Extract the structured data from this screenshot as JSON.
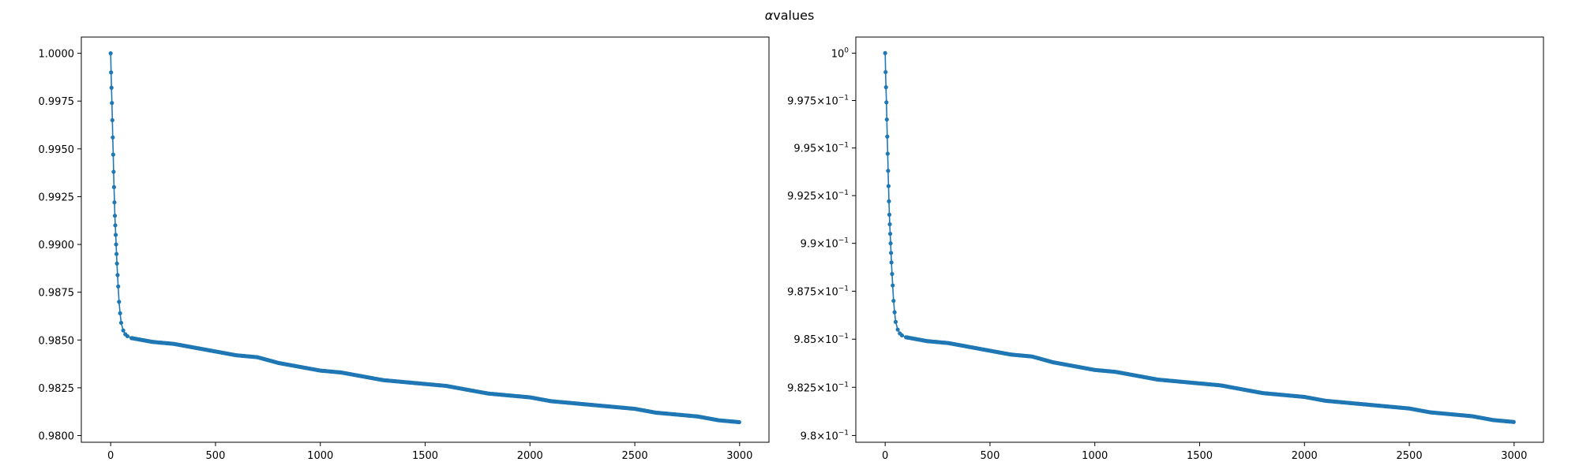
{
  "figure": {
    "suptitle_alpha": "α",
    "suptitle_rest": "values"
  },
  "colors": {
    "series": "#1f77b4",
    "axes": "#000000",
    "background": "#ffffff"
  },
  "chart_data": [
    {
      "type": "line",
      "marker": "dot",
      "yscale": "linear",
      "xlim": [
        -140,
        3140
      ],
      "ylim": [
        0.97965,
        1.00085
      ],
      "xticks": [
        0,
        500,
        1000,
        1500,
        2000,
        2500,
        3000
      ],
      "xtick_labels": [
        "0",
        "500",
        "1000",
        "1500",
        "2000",
        "2500",
        "3000"
      ],
      "yticks": [
        0.98,
        0.9825,
        0.985,
        0.9875,
        0.99,
        0.9925,
        0.995,
        0.9975,
        1.0
      ],
      "ytick_labels": [
        "0.9800",
        "0.9825",
        "0.9850",
        "0.9875",
        "0.9900",
        "0.9925",
        "0.9950",
        "0.9975",
        "1.0000"
      ],
      "series": [
        {
          "x": [
            0,
            2,
            4,
            6,
            8,
            10,
            12,
            14,
            16,
            18,
            20,
            22,
            24,
            26,
            28,
            30,
            33,
            36,
            40,
            45,
            50,
            60,
            70,
            80,
            100,
            150,
            200,
            300,
            400,
            500,
            600,
            700,
            800,
            900,
            1000,
            1100,
            1200,
            1300,
            1400,
            1500,
            1600,
            1700,
            1800,
            1900,
            2000,
            2100,
            2200,
            2300,
            2400,
            2500,
            2600,
            2700,
            2800,
            2900,
            3000
          ],
          "y": [
            1.0,
            0.999,
            0.9982,
            0.9974,
            0.9965,
            0.9956,
            0.9947,
            0.9938,
            0.993,
            0.9922,
            0.9915,
            0.991,
            0.9905,
            0.99,
            0.9895,
            0.989,
            0.9884,
            0.9878,
            0.987,
            0.9864,
            0.9859,
            0.9855,
            0.9853,
            0.9852,
            0.9851,
            0.985,
            0.9849,
            0.9848,
            0.9846,
            0.9844,
            0.9842,
            0.9841,
            0.9838,
            0.9836,
            0.9834,
            0.9833,
            0.9831,
            0.9829,
            0.9828,
            0.9827,
            0.9826,
            0.9824,
            0.9822,
            0.9821,
            0.982,
            0.9818,
            0.9817,
            0.9816,
            0.9815,
            0.9814,
            0.9812,
            0.9811,
            0.981,
            0.9808,
            0.9807
          ]
        }
      ]
    },
    {
      "type": "line",
      "marker": "dot",
      "yscale": "log",
      "xlim": [
        -140,
        3140
      ],
      "ylim": [
        0.97965,
        1.00085
      ],
      "xticks": [
        0,
        500,
        1000,
        1500,
        2000,
        2500,
        3000
      ],
      "xtick_labels": [
        "0",
        "500",
        "1000",
        "1500",
        "2000",
        "2500",
        "3000"
      ],
      "yticks": [
        0.98,
        0.9825,
        0.985,
        0.9875,
        0.99,
        0.9925,
        0.995,
        0.9975,
        1.0
      ],
      "ytick_labels": [
        {
          "mantissa": "9.8",
          "base": "10",
          "exp": "−1"
        },
        {
          "mantissa": "9.825",
          "base": "10",
          "exp": "−1"
        },
        {
          "mantissa": "9.85",
          "base": "10",
          "exp": "−1"
        },
        {
          "mantissa": "9.875",
          "base": "10",
          "exp": "−1"
        },
        {
          "mantissa": "9.9",
          "base": "10",
          "exp": "−1"
        },
        {
          "mantissa": "9.925",
          "base": "10",
          "exp": "−1"
        },
        {
          "mantissa": "9.95",
          "base": "10",
          "exp": "−1"
        },
        {
          "mantissa": "9.975",
          "base": "10",
          "exp": "−1"
        },
        {
          "mantissa": "",
          "base": "10",
          "exp": "0"
        }
      ],
      "series": [
        {
          "x": [
            0,
            2,
            4,
            6,
            8,
            10,
            12,
            14,
            16,
            18,
            20,
            22,
            24,
            26,
            28,
            30,
            33,
            36,
            40,
            45,
            50,
            60,
            70,
            80,
            100,
            150,
            200,
            300,
            400,
            500,
            600,
            700,
            800,
            900,
            1000,
            1100,
            1200,
            1300,
            1400,
            1500,
            1600,
            1700,
            1800,
            1900,
            2000,
            2100,
            2200,
            2300,
            2400,
            2500,
            2600,
            2700,
            2800,
            2900,
            3000
          ],
          "y": [
            1.0,
            0.999,
            0.9982,
            0.9974,
            0.9965,
            0.9956,
            0.9947,
            0.9938,
            0.993,
            0.9922,
            0.9915,
            0.991,
            0.9905,
            0.99,
            0.9895,
            0.989,
            0.9884,
            0.9878,
            0.987,
            0.9864,
            0.9859,
            0.9855,
            0.9853,
            0.9852,
            0.9851,
            0.985,
            0.9849,
            0.9848,
            0.9846,
            0.9844,
            0.9842,
            0.9841,
            0.9838,
            0.9836,
            0.9834,
            0.9833,
            0.9831,
            0.9829,
            0.9828,
            0.9827,
            0.9826,
            0.9824,
            0.9822,
            0.9821,
            0.982,
            0.9818,
            0.9817,
            0.9816,
            0.9815,
            0.9814,
            0.9812,
            0.9811,
            0.981,
            0.9808,
            0.9807
          ]
        }
      ]
    }
  ]
}
